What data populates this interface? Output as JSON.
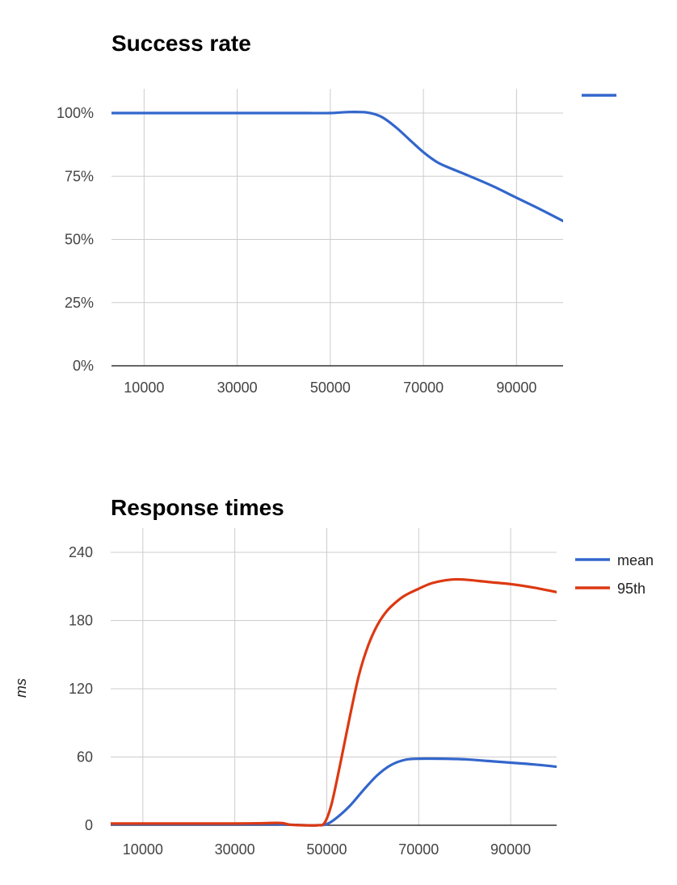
{
  "colors": {
    "blue": "#3366cc",
    "red": "#dc3912",
    "grid": "#cccccc",
    "axis": "#333333"
  },
  "chart_data": [
    {
      "type": "line",
      "title": "Success rate",
      "xlabel": "",
      "ylabel": "",
      "xlim": [
        3000,
        100000
      ],
      "ylim": [
        0,
        100
      ],
      "x_ticks": [
        10000,
        30000,
        50000,
        70000,
        90000
      ],
      "y_ticks": [
        0,
        25,
        50,
        75,
        100
      ],
      "y_tick_labels": [
        "0%",
        "25%",
        "50%",
        "75%",
        "100%"
      ],
      "grid": true,
      "legend": "right",
      "series": [
        {
          "color": "#3366cc",
          "x": [
            3000,
            10000,
            20000,
            30000,
            40000,
            45000,
            50000,
            54000,
            58000,
            61000,
            64000,
            67000,
            70000,
            73000,
            76000,
            80000,
            85000,
            90000,
            95000,
            100000
          ],
          "values": [
            100,
            100,
            100,
            100,
            100,
            100,
            100,
            100.4,
            100.2,
            98.5,
            94.5,
            89.5,
            84.5,
            80.5,
            78,
            75,
            71,
            66.5,
            62,
            57.3
          ]
        }
      ]
    },
    {
      "type": "line",
      "title": "Response times",
      "xlabel": "",
      "ylabel": "ms",
      "xlim": [
        3000,
        100000
      ],
      "ylim": [
        0,
        240
      ],
      "x_ticks": [
        10000,
        30000,
        50000,
        70000,
        90000
      ],
      "y_ticks": [
        0,
        60,
        120,
        180,
        240
      ],
      "y_tick_labels": [
        "0",
        "60",
        "120",
        "180",
        "240"
      ],
      "grid": true,
      "legend": "right",
      "series": [
        {
          "name": "mean",
          "color": "#3366cc",
          "x": [
            3000,
            10000,
            20000,
            30000,
            38000,
            42000,
            45000,
            48000,
            50000,
            52000,
            55000,
            58000,
            61000,
            64000,
            67000,
            70000,
            75000,
            80000,
            85000,
            90000,
            95000,
            100000
          ],
          "values": [
            1,
            1,
            1,
            1,
            1,
            0.5,
            0,
            0,
            1,
            6,
            17,
            31,
            44,
            53,
            57.5,
            58.5,
            58.5,
            58,
            56.5,
            55,
            53.5,
            51.5
          ]
        },
        {
          "name": "95th",
          "color": "#dc3912",
          "x": [
            3000,
            10000,
            20000,
            30000,
            35000,
            40000,
            42000,
            45000,
            48000,
            49500,
            51000,
            53000,
            55000,
            57000,
            59000,
            61000,
            63000,
            65000,
            67000,
            70000,
            73000,
            77000,
            80000,
            85000,
            90000,
            95000,
            100000
          ],
          "values": [
            1.5,
            1.5,
            1.5,
            1.5,
            1.7,
            2,
            0.5,
            0,
            0,
            2,
            18,
            55,
            95,
            132,
            158,
            176,
            188,
            196,
            202,
            208,
            213,
            216,
            216,
            214,
            212,
            209,
            205
          ]
        }
      ]
    }
  ]
}
